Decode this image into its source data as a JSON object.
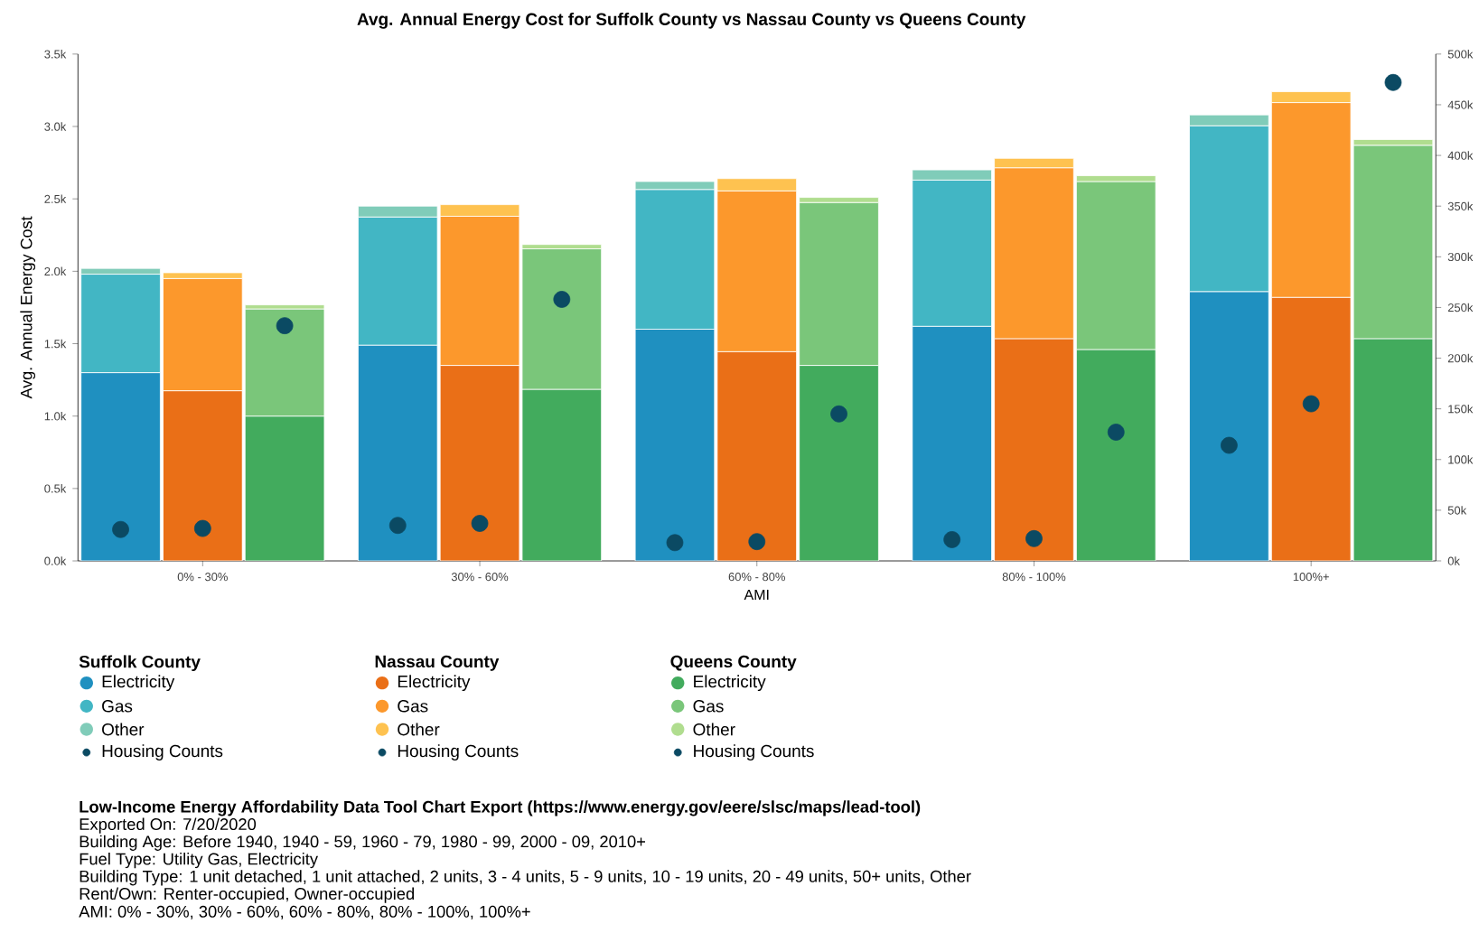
{
  "chart_data": {
    "type": "bar",
    "title": "Avg. Annual Energy Cost for Suffolk County vs Nassau County vs Queens County",
    "xlabel": "AMI",
    "ylabel": "Avg. Annual Energy Cost",
    "categories": [
      null,
      "0% - 30%",
      null,
      null,
      "30% - 60%",
      null,
      null,
      "60% - 80%",
      null,
      null,
      "80% - 100%",
      null,
      null,
      "100%+",
      null
    ],
    "stacked": true,
    "legend": "bottom",
    "legend_title": [
      "Suffolk County",
      "Nassau County",
      "Queens County"
    ],
    "marker": "circle",
    "series": [
      {
        "name": "Electricity",
        "color": "#1f90c0",
        "values": [
          1300,
          null,
          null,
          1490,
          null,
          null,
          1600,
          null,
          null,
          1620,
          null,
          null,
          1860,
          null,
          null
        ]
      },
      {
        "name": "Gas",
        "color": "#42b6c4",
        "values": [
          680,
          null,
          null,
          885,
          null,
          null,
          965,
          null,
          null,
          1010,
          null,
          null,
          1145,
          null,
          null
        ]
      },
      {
        "name": "Other",
        "color": "#80ccb9",
        "values": [
          40,
          null,
          null,
          75,
          null,
          null,
          55,
          null,
          null,
          70,
          null,
          null,
          75,
          null,
          null
        ]
      },
      {
        "name": "Housing Counts",
        "type": "scatter",
        "axis": "y2",
        "color": "#0b4a63",
        "values": [
          31000,
          null,
          null,
          35000,
          null,
          null,
          18000,
          null,
          null,
          21000,
          null,
          null,
          114000,
          null,
          null
        ]
      },
      {
        "name": "Electricity",
        "color": "#ea6f17",
        "values": [
          null,
          1175,
          null,
          null,
          1350,
          null,
          null,
          1445,
          null,
          null,
          1535,
          null,
          null,
          1820,
          null
        ]
      },
      {
        "name": "Gas",
        "color": "#fc982c",
        "values": [
          null,
          775,
          null,
          null,
          1030,
          null,
          null,
          1110,
          null,
          null,
          1180,
          null,
          null,
          1345,
          null
        ]
      },
      {
        "name": "Other",
        "color": "#fec250",
        "values": [
          null,
          40,
          null,
          null,
          80,
          null,
          null,
          85,
          null,
          null,
          65,
          null,
          null,
          75,
          null
        ]
      },
      {
        "name": "Housing Counts",
        "type": "scatter",
        "axis": "y2",
        "color": "#0b4a63",
        "values": [
          null,
          32000,
          null,
          null,
          37000,
          null,
          null,
          19000,
          null,
          null,
          22000,
          null,
          null,
          155000,
          null
        ]
      },
      {
        "name": "Electricity",
        "color": "#42ab5d",
        "values": [
          null,
          null,
          1000,
          null,
          null,
          1185,
          null,
          null,
          1350,
          null,
          null,
          1460,
          null,
          null,
          1535
        ]
      },
      {
        "name": "Gas",
        "color": "#7ac67a",
        "values": [
          null,
          null,
          740,
          null,
          null,
          970,
          null,
          null,
          1125,
          null,
          null,
          1160,
          null,
          null,
          1335
        ]
      },
      {
        "name": "Other",
        "color": "#b0dd8f",
        "values": [
          null,
          null,
          28,
          null,
          null,
          30,
          null,
          null,
          35,
          null,
          null,
          40,
          null,
          null,
          40
        ]
      },
      {
        "name": "Housing Counts",
        "type": "scatter",
        "axis": "y2",
        "color": "#0b4a63",
        "values": [
          null,
          null,
          232000,
          null,
          null,
          258000,
          null,
          null,
          145000,
          null,
          null,
          127000,
          null,
          null,
          472000
        ]
      }
    ],
    "ylim": [
      0,
      3500
    ],
    "yticks": [
      {
        "value": 0,
        "label": "0.0k"
      },
      {
        "value": 500,
        "label": "0.5k"
      },
      {
        "value": 1000,
        "label": "1.0k"
      },
      {
        "value": 1500,
        "label": "1.5k"
      },
      {
        "value": 2000,
        "label": "2.0k"
      },
      {
        "value": 2500,
        "label": "2.5k"
      },
      {
        "value": 3000,
        "label": "3.0k"
      },
      {
        "value": 3500,
        "label": "3.5k"
      }
    ],
    "y2lim": [
      0,
      500000
    ],
    "y2ticks": [
      {
        "value": 0,
        "label": "0k"
      },
      {
        "value": 50000,
        "label": "50k"
      },
      {
        "value": 100000,
        "label": "100k"
      },
      {
        "value": 150000,
        "label": "150k"
      },
      {
        "value": 200000,
        "label": "200k"
      },
      {
        "value": 250000,
        "label": "250k"
      },
      {
        "value": 300000,
        "label": "300k"
      },
      {
        "value": 350000,
        "label": "350k"
      },
      {
        "value": 400000,
        "label": "400k"
      },
      {
        "value": 450000,
        "label": "450k"
      },
      {
        "value": 500000,
        "label": "500k"
      }
    ],
    "annotations": [
      "Low-Income Energy Affordability Data Tool Chart Export (https://www.energy.gov/eere/slsc/maps/lead-tool)",
      "Exported On: 7/20/2020",
      "Building Age: Before 1940, 1940 - 59, 1960 - 79, 1980 - 99, 2000 - 09, 2010+",
      "Fuel Type: Utility Gas, Electricity",
      "Building Type: 1 unit detached, 1 unit attached, 2 units, 3 - 4 units, 5 - 9 units, 10 - 19 units, 20 - 49 units, 50+ units, Other",
      "Rent/Own: Renter-occupied, Owner-occupied",
      "AMI: 0% - 30%, 30% - 60%, 60% - 80%, 80% - 100%, 100%+"
    ]
  }
}
